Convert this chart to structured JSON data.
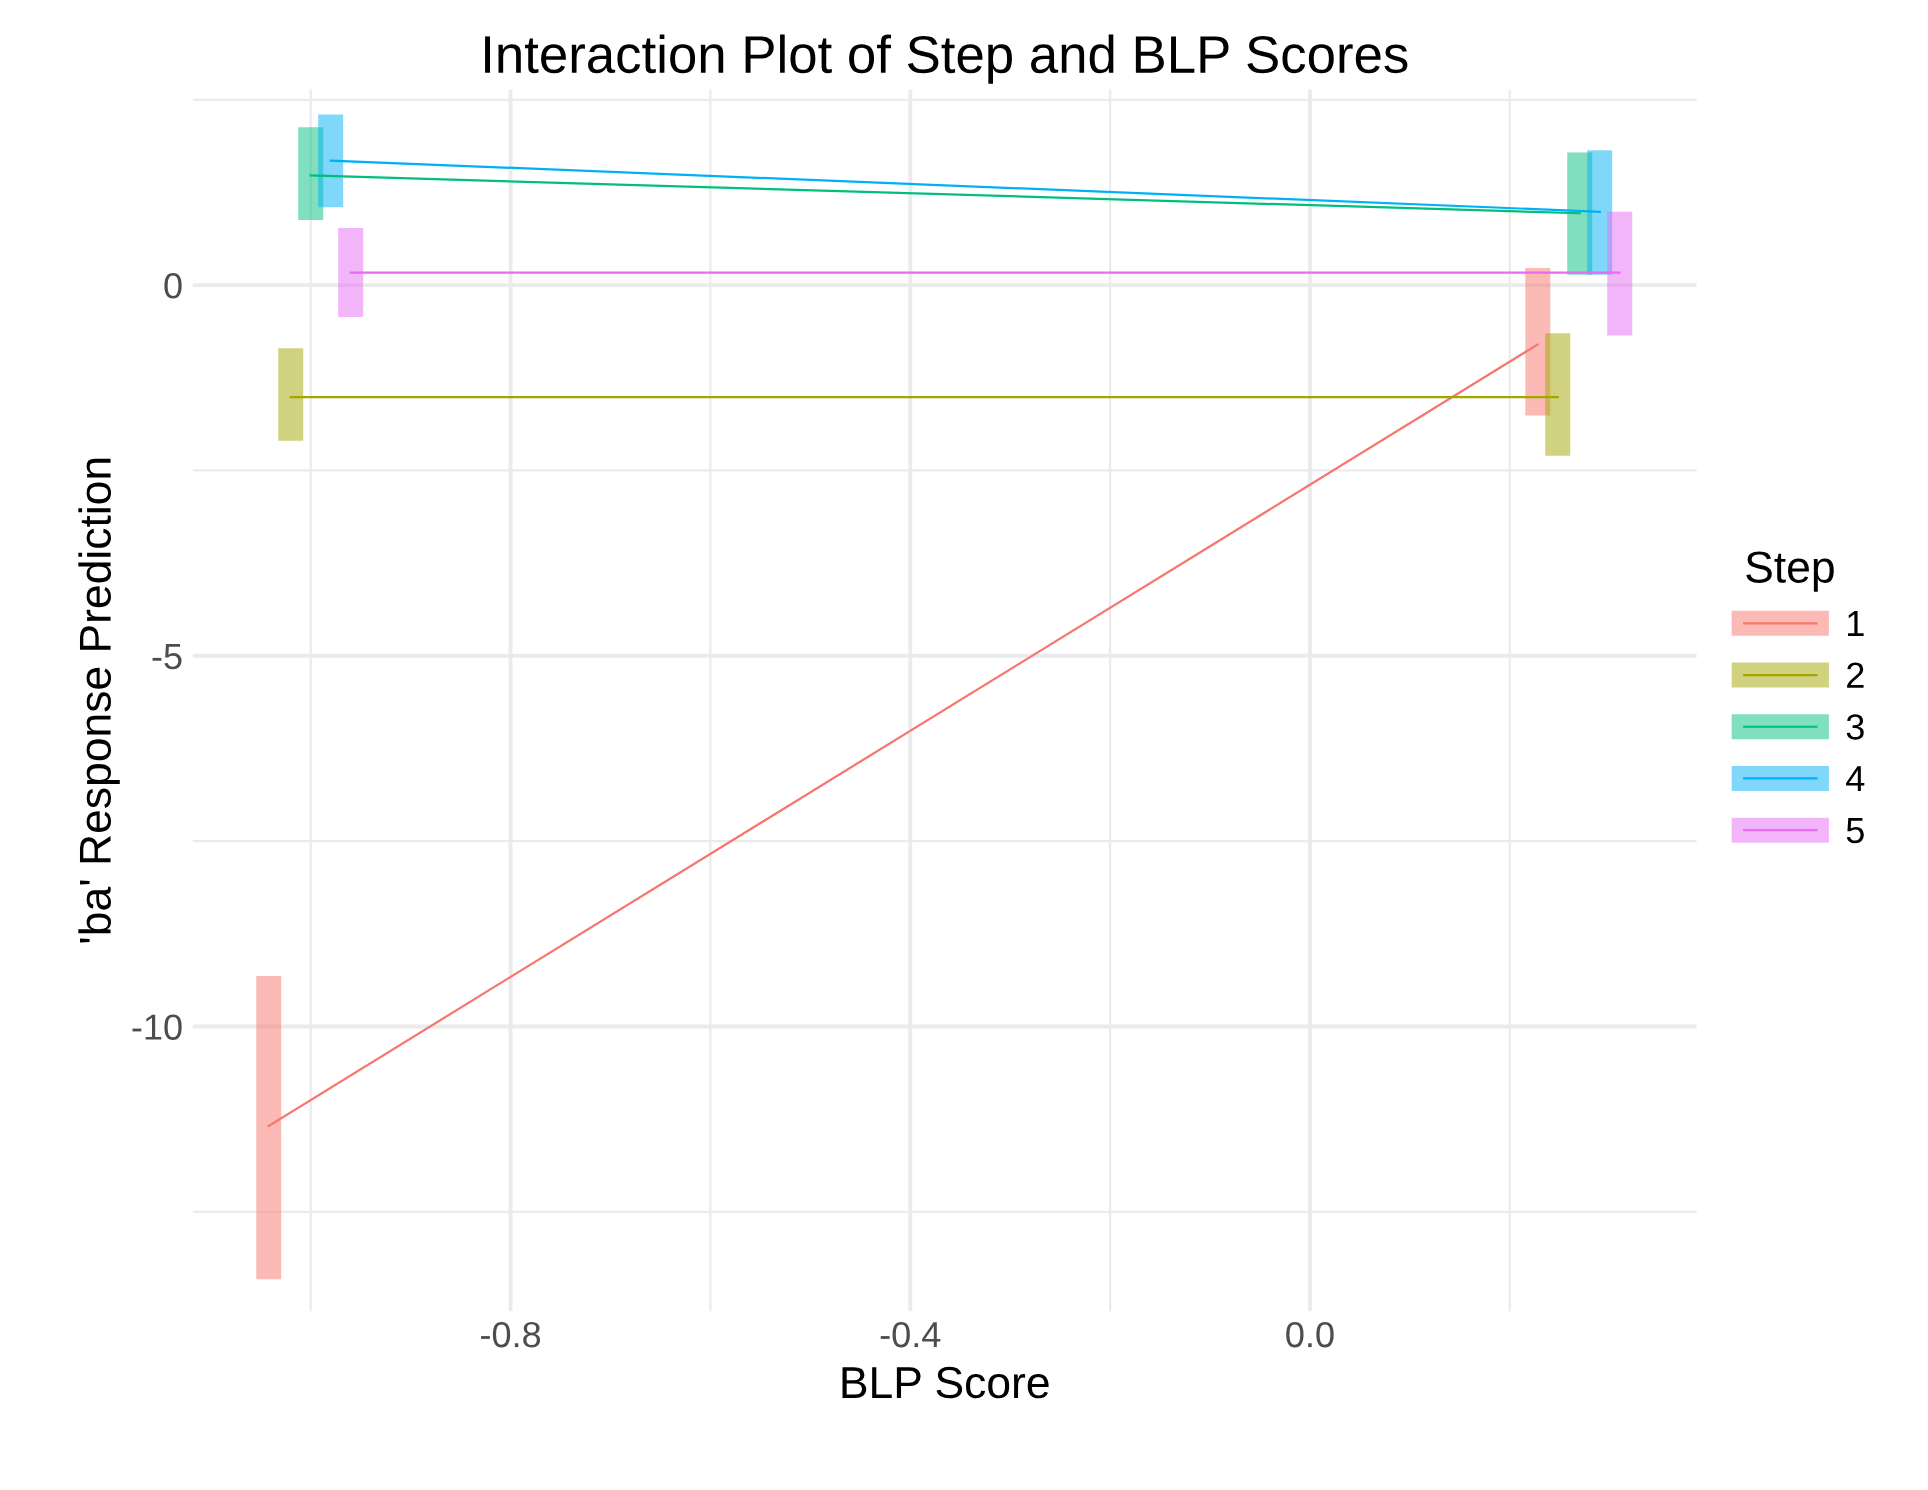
{
  "chart_data": {
    "type": "line",
    "title": "Interaction Plot of Step and BLP Scores",
    "xlabel": "BLP Score",
    "ylabel": "'ba' Response Prediction",
    "legend_title": "Step",
    "legend": "right",
    "grid": true,
    "marker": "none",
    "line_style": "solid",
    "xlim": [
      -1.118,
      0.387
    ],
    "ylim": [
      -13.84,
      2.64
    ],
    "xticks": [
      {
        "value": -1.0,
        "label": null
      },
      -0.8,
      {
        "value": -0.6,
        "label": null
      },
      -0.4,
      {
        "value": -0.2,
        "label": null
      },
      {
        "value": 0.0,
        "label": "0.0"
      },
      {
        "value": 0.2,
        "label": null
      }
    ],
    "yticks": [
      {
        "value": -12.5,
        "label": null
      },
      -10,
      {
        "value": -7.5,
        "label": null
      },
      -5,
      {
        "value": -2.5,
        "label": null
      },
      0,
      {
        "value": 2.5,
        "label": null
      }
    ],
    "series": [
      {
        "name": "1",
        "color": "#F8766D",
        "x": [
          -1.042,
          0.228
        ],
        "values": [
          -11.34,
          -0.8
        ],
        "errors": [
          [
            -13.41,
            -9.32
          ],
          [
            -1.76,
            0.23
          ]
        ]
      },
      {
        "name": "2",
        "color": "#A3A500",
        "x": [
          -1.02,
          0.248
        ],
        "values": [
          -1.51,
          -1.51
        ],
        "errors": [
          [
            -2.1,
            -0.85
          ],
          [
            -2.3,
            -0.65
          ]
        ]
      },
      {
        "name": "3",
        "color": "#00BF7D",
        "x": [
          -1.0,
          0.27
        ],
        "values": [
          1.48,
          0.97
        ],
        "errors": [
          [
            0.88,
            2.13
          ],
          [
            0.14,
            1.79
          ]
        ]
      },
      {
        "name": "4",
        "color": "#00B0F6",
        "x": [
          -0.98,
          0.29
        ],
        "values": [
          1.68,
          0.99
        ],
        "errors": [
          [
            1.05,
            2.3
          ],
          [
            0.14,
            1.82
          ]
        ]
      },
      {
        "name": "5",
        "color": "#E76BF3",
        "x": [
          -0.96,
          0.31
        ],
        "values": [
          0.17,
          0.17
        ],
        "errors": [
          [
            -0.43,
            0.77
          ],
          [
            -0.68,
            0.99
          ]
        ]
      }
    ]
  }
}
